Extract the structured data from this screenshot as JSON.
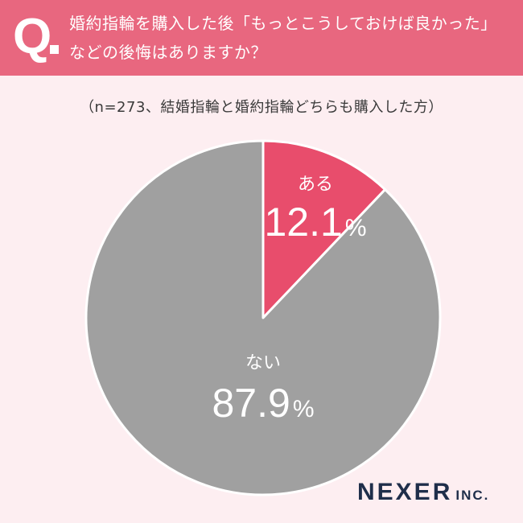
{
  "header": {
    "q_mark": "Q",
    "question_line1": "婚約指輪を購入した後「もっとこうしておけば良かった」",
    "question_line2": "などの後悔はありますか？"
  },
  "subtitle": "（n=273、結婚指輪と婚約指輪どちらも購入した方）",
  "chart_data": {
    "type": "pie",
    "categories": [
      "ある",
      "ない"
    ],
    "values": [
      12.1,
      87.9
    ],
    "value_labels": [
      {
        "number": "12.1",
        "unit": "%"
      },
      {
        "number": "87.9",
        "unit": "%"
      }
    ],
    "colors": [
      "#e84d6c",
      "#a0a0a0"
    ],
    "start": "12 o'clock",
    "direction": "clockwise"
  },
  "logo": {
    "main": "NEXER",
    "suffix": "INC."
  },
  "colors": {
    "background": "#fdeef1",
    "header": "#e8677f",
    "logo": "#1f2e4a"
  }
}
